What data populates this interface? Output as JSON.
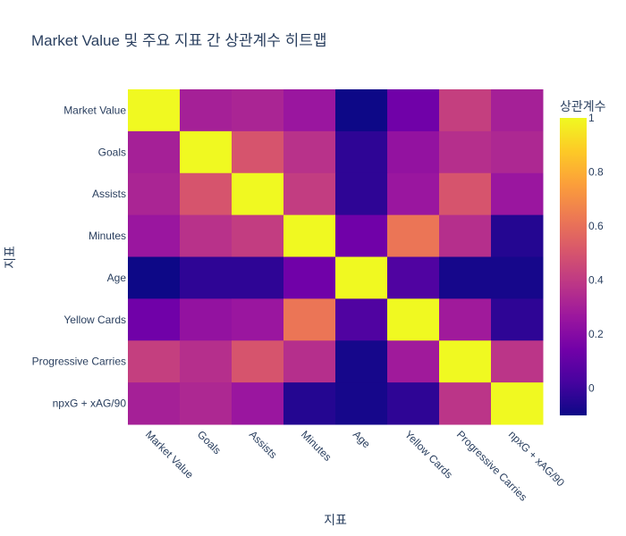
{
  "chart_data": {
    "type": "heatmap",
    "title": "Market Value 및 주요 지표 간 상관계수 히트맵",
    "xlabel": "지표",
    "ylabel": "지표",
    "x_categories": [
      "Market Value",
      "Goals",
      "Assists",
      "Minutes",
      "Age",
      "Yellow Cards",
      "Progressive Carries",
      "npxG + xAG/90"
    ],
    "y_categories": [
      "Market Value",
      "Goals",
      "Assists",
      "Minutes",
      "Age",
      "Yellow Cards",
      "Progressive Carries",
      "npxG + xAG/90"
    ],
    "z": [
      [
        1.0,
        0.3,
        0.32,
        0.26,
        -0.1,
        0.14,
        0.42,
        0.3
      ],
      [
        0.3,
        1.0,
        0.5,
        0.37,
        -0.03,
        0.24,
        0.36,
        0.33
      ],
      [
        0.32,
        0.5,
        1.0,
        0.41,
        -0.03,
        0.26,
        0.5,
        0.26
      ],
      [
        0.26,
        0.37,
        0.41,
        1.0,
        0.14,
        0.62,
        0.36,
        -0.05
      ],
      [
        -0.1,
        -0.03,
        -0.03,
        0.14,
        1.0,
        0.05,
        -0.08,
        -0.08
      ],
      [
        0.14,
        0.24,
        0.26,
        0.62,
        0.05,
        1.0,
        0.28,
        -0.03
      ],
      [
        0.42,
        0.36,
        0.5,
        0.36,
        -0.08,
        0.28,
        1.0,
        0.38
      ],
      [
        0.3,
        0.33,
        0.26,
        -0.05,
        -0.08,
        -0.03,
        0.38,
        1.0
      ]
    ],
    "zmin": -0.1,
    "zmax": 1.0,
    "colorscale": [
      "#0d0887",
      "#46039f",
      "#7201a8",
      "#9c179e",
      "#bd3786",
      "#d8576b",
      "#ed7953",
      "#fb9f3a",
      "#fdca26",
      "#f0f921"
    ],
    "colorbar": {
      "title": "상관계수",
      "tickvals": [
        0,
        0.2,
        0.4,
        0.6,
        0.8,
        1
      ],
      "ticktext": [
        "0",
        "0.2",
        "0.4",
        "0.6",
        "0.8",
        "1"
      ]
    }
  }
}
